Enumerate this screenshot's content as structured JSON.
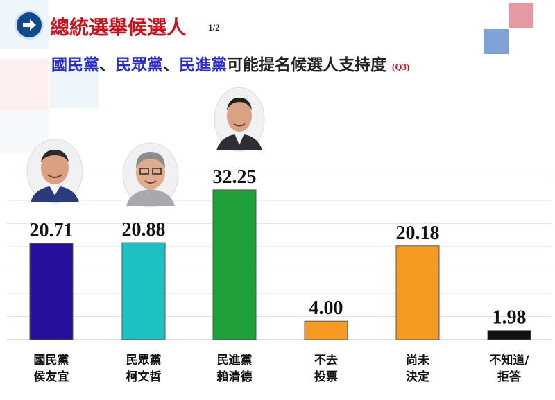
{
  "header": {
    "title": "總統選舉候選人",
    "page": "1/2",
    "subtitle_parts": [
      {
        "text": "國民黨",
        "role": "party"
      },
      {
        "text": "、",
        "role": "sep"
      },
      {
        "text": "民眾黨",
        "role": "party"
      },
      {
        "text": "、",
        "role": "sep"
      },
      {
        "text": "民進黨",
        "role": "party"
      },
      {
        "text": "可能提名候選人支持度",
        "role": "text"
      }
    ],
    "question_tag": "(Q3)"
  },
  "colors": {
    "title": "#c8141e",
    "party": "#2d2ec6",
    "bars": [
      "#24109a",
      "#1ec1c1",
      "#20a03a",
      "#f79a22",
      "#f79a22",
      "#111111"
    ]
  },
  "chart_data": {
    "type": "bar",
    "categories": [
      [
        "國民黨",
        "侯友宜"
      ],
      [
        "民眾黨",
        "柯文哲"
      ],
      [
        "民進黨",
        "賴清德"
      ],
      [
        "不去",
        "投票"
      ],
      [
        "尚未",
        "決定"
      ],
      [
        "不知道/",
        "拒答"
      ]
    ],
    "values": [
      20.71,
      20.88,
      32.25,
      4.0,
      20.18,
      1.98
    ],
    "value_labels": [
      "20.71",
      "20.88",
      "32.25",
      "4.00",
      "20.18",
      "1.98"
    ],
    "ylim": [
      0,
      40
    ],
    "grid": true,
    "title": "",
    "xlabel": "",
    "ylabel": ""
  },
  "photos": [
    "candidate-photo-hou",
    "candidate-photo-ko",
    "candidate-photo-lai"
  ]
}
